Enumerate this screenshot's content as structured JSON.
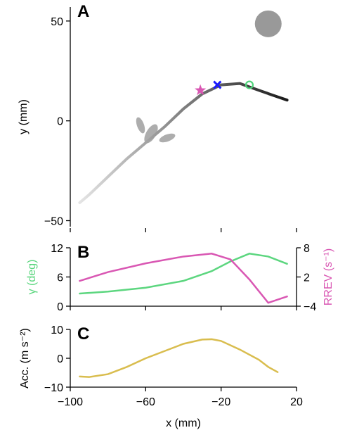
{
  "chart_data": [
    {
      "type": "line",
      "label": "A",
      "ylabel": "y (mm)",
      "xlim": [
        -100,
        20
      ],
      "xticks": [
        -100,
        -60,
        -20,
        20
      ],
      "ylim": [
        -53,
        57
      ],
      "yticks": [
        {
          "value": -50,
          "label": "−50"
        },
        0,
        50
      ],
      "x": [
        -95,
        -90,
        -80,
        -70,
        -60,
        -50,
        -40,
        -30,
        -20,
        -10,
        0,
        10,
        15
      ],
      "series": [
        {
          "color": [
            "#eeeeee",
            "#111111"
          ],
          "values": [
            -41,
            -37,
            -28,
            -19,
            -11,
            -3,
            6,
            13.5,
            18,
            18.7,
            15.3,
            12,
            10.4
          ]
        }
      ],
      "markers": [
        {
          "marker": "target",
          "color": "#999999",
          "x": 5,
          "y": 48.6
        },
        {
          "marker": "star",
          "color": "#d957b3",
          "x": -31,
          "y": 15.3
        },
        {
          "marker": "cross",
          "color": "#1a1aff",
          "x": -22,
          "y": 18
        },
        {
          "marker": "circle",
          "color": "#4fd37a",
          "x": -5,
          "y": 18
        }
      ]
    },
    {
      "type": "line",
      "label": "B",
      "ylabel": "γ (deg)",
      "y2label": "RREV (s⁻¹)",
      "xlim": [
        -100,
        20
      ],
      "xticks": [
        -100,
        -60,
        -20,
        20
      ],
      "ylim": [
        0,
        12
      ],
      "yticks": [
        0,
        6,
        12
      ],
      "y2lim": [
        -4,
        8
      ],
      "y2ticks": [
        {
          "value": -4,
          "label": "−4"
        },
        2,
        8
      ],
      "x": [
        -95,
        -80,
        -60,
        -40,
        -25,
        -15,
        -5,
        5,
        15
      ],
      "series": [
        {
          "color": "#5cd67f",
          "values": [
            2.6,
            3.0,
            3.8,
            5.2,
            7.2,
            9.2,
            10.8,
            10.2,
            8.7
          ]
        },
        {
          "color": "#d957b3",
          "axis": "y2",
          "values": [
            1.2,
            3.0,
            4.8,
            6.2,
            6.8,
            5.6,
            1.5,
            -3.3,
            -2
          ]
        }
      ]
    },
    {
      "type": "line",
      "label": "C",
      "ylabel": "Acc. (m s⁻²)",
      "xlabel": "x (mm)",
      "xlim": [
        -100,
        20
      ],
      "xticks": [
        {
          "value": -100,
          "label": "−100"
        },
        {
          "value": -60,
          "label": "−60"
        },
        {
          "value": -20,
          "label": "−20"
        },
        20
      ],
      "ylim": [
        -10,
        10
      ],
      "yticks": [
        {
          "value": -10,
          "label": "−10"
        },
        0,
        10
      ],
      "x": [
        -95,
        -90,
        -80,
        -70,
        -60,
        -50,
        -40,
        -30,
        -25,
        -20,
        -10,
        0,
        5,
        10
      ],
      "series": [
        {
          "color": "#d9bd4e",
          "values": [
            -6.3,
            -6.5,
            -5.5,
            -3,
            0,
            2.5,
            5,
            6.5,
            6.6,
            6,
            3,
            -0.5,
            -3,
            -4.8
          ]
        }
      ]
    }
  ]
}
